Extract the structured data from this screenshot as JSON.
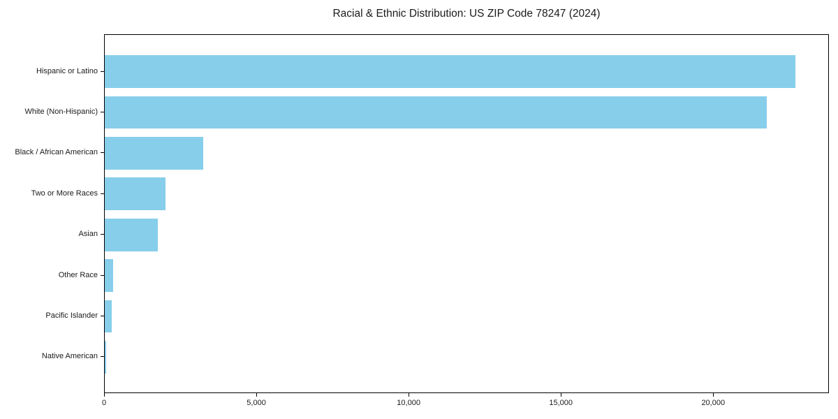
{
  "chart_data": {
    "type": "bar",
    "orientation": "horizontal",
    "title": "Racial & Ethnic Distribution: US ZIP Code 78247 (2024)",
    "categories": [
      "Hispanic or Latino",
      "White (Non-Hispanic)",
      "Black / African American",
      "Two or More Races",
      "Asian",
      "Other Race",
      "Pacific Islander",
      "Native American"
    ],
    "values": [
      22670,
      21740,
      3235,
      2000,
      1745,
      275,
      230,
      45
    ],
    "xlabel": "",
    "ylabel": "",
    "xlim": [
      0,
      23800
    ],
    "x_ticks": [
      0,
      5000,
      10000,
      15000,
      20000
    ],
    "x_tick_labels": [
      "0",
      "5,000",
      "10,000",
      "15,000",
      "20,000"
    ],
    "bar_color": "#87CEEB",
    "text_color": "#1a1a1a",
    "axis_color": "#000000",
    "grid": false,
    "legend": null
  }
}
